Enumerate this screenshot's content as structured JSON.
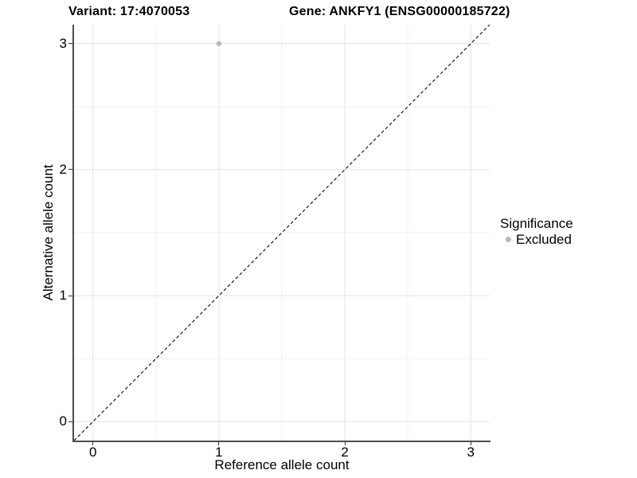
{
  "colors": {
    "background": "#ffffff",
    "grid_major": "#e3e3e3",
    "grid_minor": "#f0f0f0",
    "axis_line": "#4d4d4d",
    "tick_mark": "#333333",
    "text": "#000000",
    "point_excluded": "#b9b9b9",
    "reference_line": "#000000"
  },
  "chart_data": {
    "type": "scatter",
    "titles": [
      "Variant: 17:4070053",
      "Gene: ANKFY1 (ENSG00000185722)"
    ],
    "xlabel": "Reference allele count",
    "ylabel": "Alternative allele count",
    "xlim": [
      -0.15,
      3.15
    ],
    "ylim": [
      -0.15,
      3.15
    ],
    "xticks": [
      0,
      1,
      2,
      3
    ],
    "yticks": [
      0,
      1,
      2,
      3
    ],
    "xminor": [
      0.5,
      1.5,
      2.5
    ],
    "yminor": [
      0.5,
      1.5,
      2.5
    ],
    "grid": "major and minor gridlines on white panel",
    "series": [
      {
        "name": "Excluded",
        "color": "#b9b9b9",
        "points": [
          {
            "x": 1,
            "y": 3
          }
        ]
      }
    ],
    "reference_line": {
      "kind": "identity",
      "slope": 1,
      "intercept": 0,
      "style": "dashed",
      "color": "#000000"
    },
    "legend": {
      "title": "Significance",
      "position": "right",
      "items": [
        {
          "label": "Excluded",
          "color": "#b9b9b9"
        }
      ]
    }
  }
}
